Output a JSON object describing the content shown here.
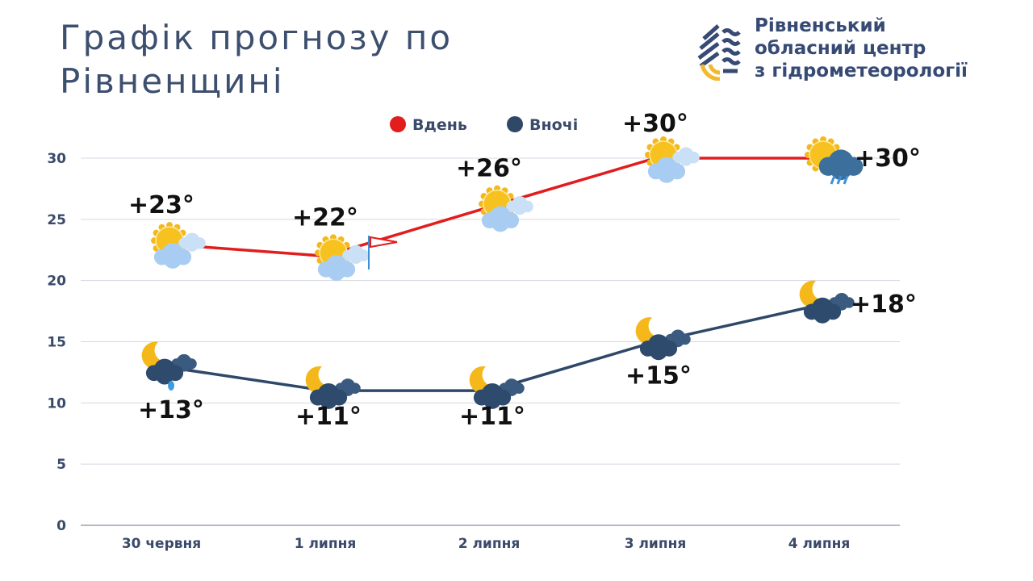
{
  "title_lines": [
    "Графік прогнозу по",
    "Рівненщині"
  ],
  "organization": {
    "lines": [
      "Рівненський",
      "обласний центр",
      "з гідрометеорології"
    ]
  },
  "chart_data": {
    "type": "line",
    "categories": [
      "30 червня",
      "1 липня",
      "2 липня",
      "3 липня",
      "4 липня"
    ],
    "series": [
      {
        "name": "Вдень",
        "color": "#e11d1d",
        "values": [
          23,
          22,
          26,
          30,
          30
        ],
        "labels": [
          "+23°",
          "+22°",
          "+26°",
          "+30°",
          "+30°"
        ],
        "icons": [
          "sun-cloud",
          "sun-cloud",
          "sun-cloud",
          "sun-cloud",
          "sun-rain-cloud"
        ]
      },
      {
        "name": "Вночі",
        "color": "#2f4868",
        "values": [
          13,
          11,
          11,
          15,
          18
        ],
        "labels": [
          "+13°",
          "+11°",
          "+11°",
          "+15°",
          "+18°"
        ],
        "icons": [
          "moon-cloud-rain",
          "moon-cloud",
          "moon-cloud",
          "moon-cloud",
          "moon-cloud"
        ]
      }
    ],
    "ylim": [
      0,
      30
    ],
    "yticks": [
      0,
      5,
      10,
      15,
      20,
      25,
      30
    ],
    "grid": true,
    "legend": "top-center",
    "annotations": [
      {
        "icon": "windsock",
        "category": "1 липня"
      }
    ]
  }
}
